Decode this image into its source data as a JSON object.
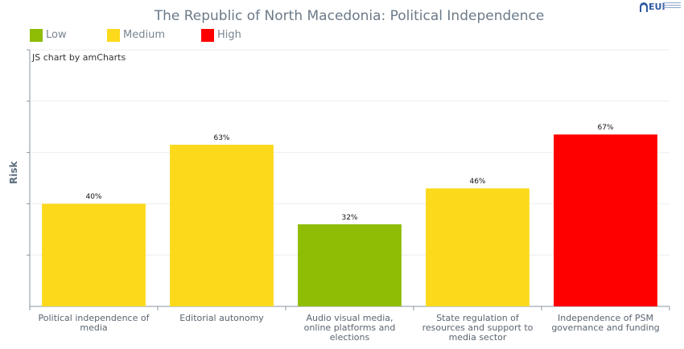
{
  "chart_data": {
    "type": "bar",
    "title": "The Republic of North Macedonia: Political Independence",
    "ylabel": "Risk",
    "credit": "JS chart by amCharts",
    "categories": [
      "Political independence of media",
      "Editorial autonomy",
      "Audio visual media, online platforms and elections",
      "State regulation of resources and support to media sector",
      "Independence of PSM governance and funding"
    ],
    "values": [
      40,
      63,
      32,
      46,
      67
    ],
    "value_labels": [
      "40%",
      "63%",
      "32%",
      "46%",
      "67%"
    ],
    "bar_colors": [
      "#fcd91b",
      "#fcd91b",
      "#8fbc05",
      "#fcd91b",
      "#ff0000"
    ],
    "ylim": [
      0,
      100
    ],
    "grid": true,
    "legend": [
      {
        "label": "Low",
        "color": "#8fbc05"
      },
      {
        "label": "Medium",
        "color": "#fcd91b"
      },
      {
        "label": "High",
        "color": "#ff0000"
      }
    ],
    "legend_position": "top-left"
  },
  "logo_text": "EUI"
}
